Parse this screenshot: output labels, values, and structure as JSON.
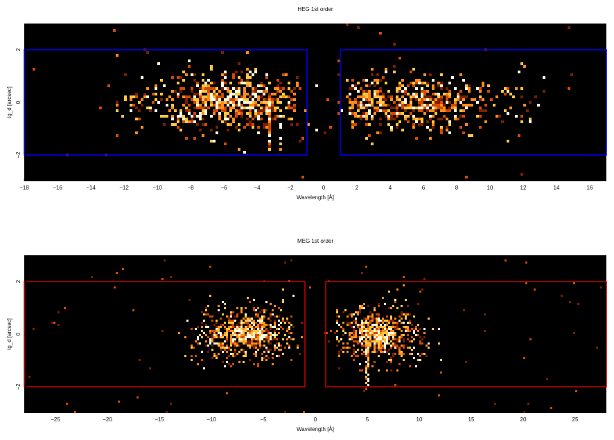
{
  "chart_data": [
    {
      "type": "heatmap",
      "title": "HEG 1st order",
      "xlabel": "Wavelength [Å]",
      "ylabel": "tg_d [arcsec]",
      "xlim": [
        -18,
        17
      ],
      "ylim": [
        -3,
        3
      ],
      "xticks": [
        -18,
        -16,
        -14,
        -12,
        -10,
        -8,
        -6,
        -4,
        -2,
        0,
        2,
        4,
        6,
        8,
        10,
        12,
        14,
        16
      ],
      "xtick_labels": [
        "−18",
        "−16",
        "−14",
        "−12",
        "−10",
        "−8",
        "−6",
        "−4",
        "−2",
        "0",
        "2",
        "4",
        "6",
        "8",
        "10",
        "12",
        "14",
        "16"
      ],
      "yticks": [
        -2,
        0,
        2
      ],
      "ytick_labels": [
        "−2",
        "0",
        "2"
      ],
      "background": "#000000",
      "colormap": [
        "#7a1e00",
        "#d24a00",
        "#ff8c1a",
        "#ffc640",
        "#fffbe0"
      ],
      "extraction_regions": {
        "color": "#0000ff",
        "boxes": [
          {
            "x": [
              -18,
              -1
            ],
            "y": [
              -2,
              2
            ]
          },
          {
            "x": [
              1,
              17
            ],
            "y": [
              -2,
              2
            ]
          }
        ]
      },
      "density_model": {
        "arms": [
          {
            "x": [
              -12.5,
              -1.5
            ],
            "peaks": [
              -7,
              -4
            ],
            "y_sigma": 0.6,
            "density": 900
          },
          {
            "x": [
              1.5,
              12.5
            ],
            "peaks": [
              3,
              6.5
            ],
            "y_sigma": 0.55,
            "density": 800
          }
        ],
        "streak": {
          "x": -3.3,
          "y": [
            -2,
            0
          ]
        }
      }
    },
    {
      "type": "heatmap",
      "title": "MEG 1st order",
      "xlabel": "Wavelength [Å]",
      "ylabel": "tg_d [arcsec]",
      "xlim": [
        -28,
        28
      ],
      "ylim": [
        -3,
        3
      ],
      "xticks": [
        -25,
        -20,
        -15,
        -10,
        -5,
        0,
        5,
        10,
        15,
        20,
        25
      ],
      "xtick_labels": [
        "−25",
        "−20",
        "−15",
        "−10",
        "−5",
        "0",
        "5",
        "10",
        "15",
        "20",
        "25"
      ],
      "yticks": [
        -2,
        0,
        2
      ],
      "ytick_labels": [
        "−2",
        "0",
        "2"
      ],
      "background": "#000000",
      "colormap": [
        "#7a1e00",
        "#d24a00",
        "#ff8c1a",
        "#ffc640",
        "#fffbe0"
      ],
      "extraction_regions": {
        "color": "#cc0000",
        "boxes": [
          {
            "x": [
              -28,
              -1
            ],
            "y": [
              -2,
              2
            ]
          },
          {
            "x": [
              1,
              28
            ],
            "y": [
              -2,
              2
            ]
          }
        ]
      },
      "density_model": {
        "arms": [
          {
            "x": [
              -12,
              -2
            ],
            "peaks": [
              -8,
              -5
            ],
            "y_sigma": 0.55,
            "density": 1400
          },
          {
            "x": [
              2,
              11
            ],
            "peaks": [
              5,
              7
            ],
            "y_sigma": 0.55,
            "density": 1400
          }
        ],
        "streak": {
          "x": 5,
          "y": [
            -2.1,
            -0.3
          ]
        }
      }
    }
  ]
}
